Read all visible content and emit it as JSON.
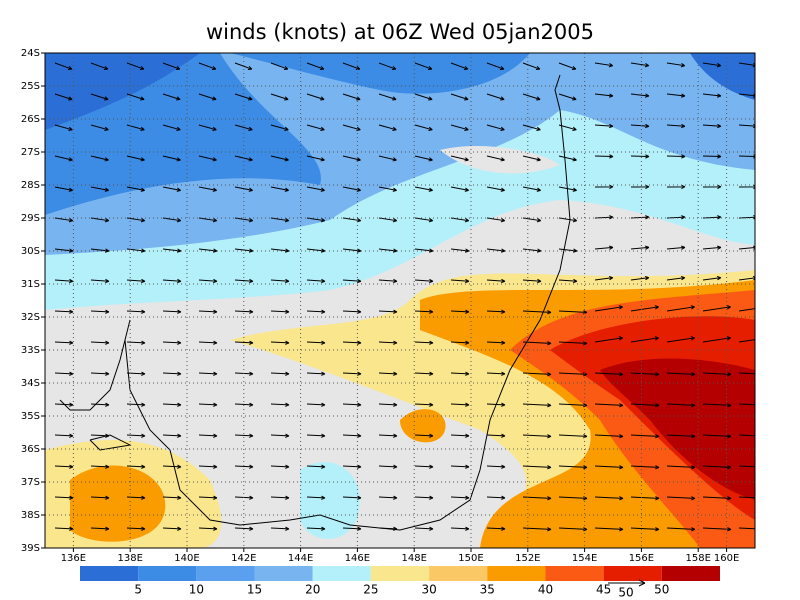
{
  "title": "winds (knots) at 06Z Wed 05jan2005",
  "latitude_labels": [
    "24S",
    "25S",
    "26S",
    "27S",
    "28S",
    "29S",
    "30S",
    "31S",
    "32S",
    "33S",
    "34S",
    "35S",
    "36S",
    "37S",
    "38S",
    "39S"
  ],
  "longitude_labels": [
    "136E",
    "138E",
    "140E",
    "142E",
    "144E",
    "146E",
    "148E",
    "150E",
    "152E",
    "154E",
    "156E",
    "158E",
    "160E"
  ],
  "legend": {
    "labels": [
      "5",
      "10",
      "15",
      "20",
      "25",
      "30",
      "35",
      "40",
      "45",
      "50"
    ],
    "reference_label": "50"
  }
}
